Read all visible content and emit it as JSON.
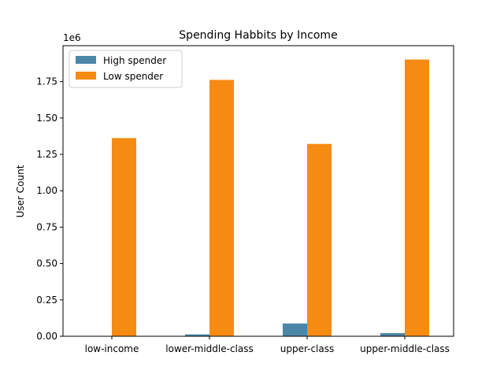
{
  "chart_data": {
    "type": "bar",
    "title": "Spending Habbits by Income",
    "xlabel": "",
    "ylabel": "User Count",
    "y_offset_label": "1e6",
    "categories": [
      "low-income",
      "lower-middle-class",
      "upper-class",
      "upper-middle-class"
    ],
    "series": [
      {
        "name": "High spender",
        "color": "#4c87a8",
        "values": [
          0,
          13000,
          88000,
          22000
        ]
      },
      {
        "name": "Low spender",
        "color": "#f68b14",
        "values": [
          1362000,
          1762000,
          1322000,
          1902000
        ]
      }
    ],
    "ylim": [
      0,
      1997000
    ],
    "yticks": [
      0,
      250000,
      500000,
      750000,
      1000000,
      1250000,
      1500000,
      1750000
    ],
    "ytick_labels": [
      "0.00",
      "0.25",
      "0.50",
      "0.75",
      "1.00",
      "1.25",
      "1.50",
      "1.75"
    ],
    "legend_position": "top-left",
    "grid": false
  }
}
